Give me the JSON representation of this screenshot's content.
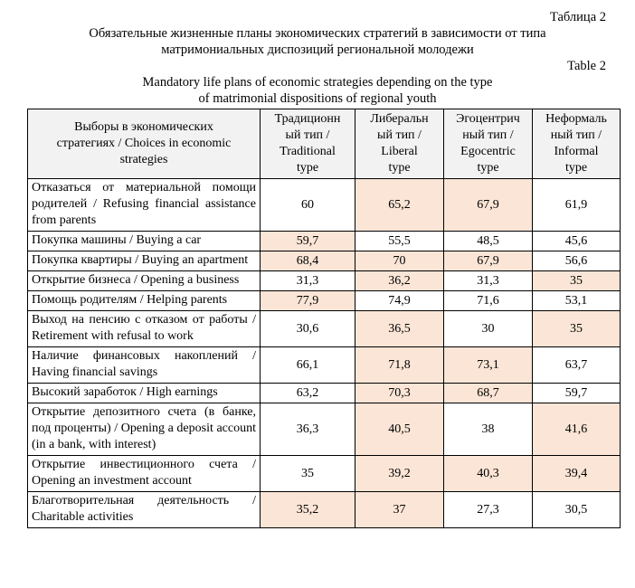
{
  "captions": {
    "label_ru": "Таблица 2",
    "title_ru_lines": [
      "Обязательные жизненные планы экономических стратегий в зависимости от типа",
      "матримониальных диспозиций региональной молодежи"
    ],
    "label_en": "Table 2",
    "title_en_lines": [
      "Mandatory life plans of economic strategies depending on the type",
      "of matrimonial dispositions of regional youth"
    ]
  },
  "colors": {
    "highlight": "#fbe5d6",
    "header_bg": "#f2f2f2",
    "border": "#000000"
  },
  "table": {
    "header": {
      "choices": "Выборы в экономических\nстратегиях / Choices in economic\nstrategies",
      "types": [
        "Традиционн\nый тип /\nTraditional\ntype",
        "Либеральн\nый тип /\nLiberal\ntype",
        "Эгоцентрич\nный тип /\nEgocentric\ntype",
        "Неформаль\nный тип /\nInformal\ntype"
      ]
    },
    "rows": [
      {
        "label": "Отказаться от материальной помощи родителей / Refusing financial assistance from parents",
        "values": [
          "60",
          "65,2",
          "67,9",
          "61,9"
        ],
        "highlight": [
          false,
          true,
          true,
          false
        ]
      },
      {
        "label": "Покупка машины / Buying a car",
        "values": [
          "59,7",
          "55,5",
          "48,5",
          "45,6"
        ],
        "highlight": [
          true,
          false,
          false,
          false
        ]
      },
      {
        "label": "Покупка квартиры / Buying an apartment",
        "values": [
          "68,4",
          "70",
          "67,9",
          "56,6"
        ],
        "highlight": [
          true,
          true,
          true,
          false
        ]
      },
      {
        "label": "Открытие бизнеса / Opening a business",
        "values": [
          "31,3",
          "36,2",
          "31,3",
          "35"
        ],
        "highlight": [
          false,
          true,
          false,
          true
        ]
      },
      {
        "label": "Помощь родителям / Helping parents",
        "values": [
          "77,9",
          "74,9",
          "71,6",
          "53,1"
        ],
        "highlight": [
          true,
          false,
          false,
          false
        ]
      },
      {
        "label": "Выход на пенсию с отказом от работы / Retirement with refusal to work",
        "values": [
          "30,6",
          "36,5",
          "30",
          "35"
        ],
        "highlight": [
          false,
          true,
          false,
          true
        ]
      },
      {
        "label": "Наличие финансовых накоплений / Having financial savings",
        "values": [
          "66,1",
          "71,8",
          "73,1",
          "63,7"
        ],
        "highlight": [
          false,
          true,
          true,
          false
        ]
      },
      {
        "label": "Высокий заработок / High earnings",
        "values": [
          "63,2",
          "70,3",
          "68,7",
          "59,7"
        ],
        "highlight": [
          false,
          true,
          true,
          false
        ]
      },
      {
        "label": "Открытие депозитного счета (в банке, под проценты) / Opening a deposit account (in a bank, with interest)",
        "values": [
          "36,3",
          "40,5",
          "38",
          "41,6"
        ],
        "highlight": [
          false,
          true,
          false,
          true
        ]
      },
      {
        "label": "Открытие инвестиционного счета / Opening an investment account",
        "values": [
          "35",
          "39,2",
          "40,3",
          "39,4"
        ],
        "highlight": [
          false,
          true,
          true,
          true
        ]
      },
      {
        "label": "Благотворительная деятельность / Charitable activities",
        "values": [
          "35,2",
          "37",
          "27,3",
          "30,5"
        ],
        "highlight": [
          true,
          true,
          false,
          false
        ]
      }
    ]
  }
}
